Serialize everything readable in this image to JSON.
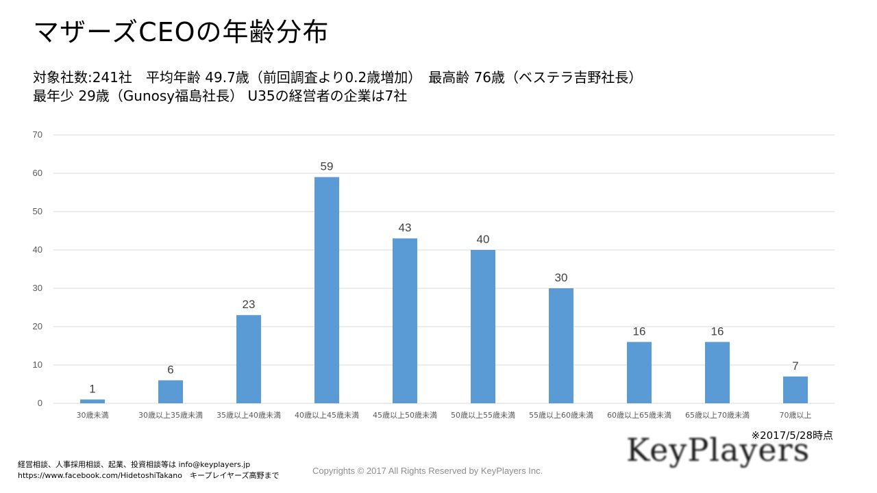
{
  "title": "マザーズCEOの年齢分布",
  "summary": {
    "line1": "対象社数:241社　平均年齢 49.7歳（前回調査より0.2歳増加）　最高齢 76歳（ベステラ吉野社長）",
    "line2": "最年少 29歳（Gunosy福島社長）  U35の経営者の企業は7社"
  },
  "chart_data": {
    "type": "bar",
    "categories": [
      "30歳未満",
      "30歳以上35歳未満",
      "35歳以上40歳未満",
      "40歳以上45歳未満",
      "45歳以上50歳未満",
      "50歳以上55歳未満",
      "55歳以上60歳未満",
      "60歳以上65歳未満",
      "65歳以上70歳未満",
      "70歳以上"
    ],
    "values": [
      1,
      6,
      23,
      59,
      43,
      40,
      30,
      16,
      16,
      7
    ],
    "ylim": [
      0,
      70
    ],
    "yticks": [
      0,
      10,
      20,
      30,
      40,
      50,
      60,
      70
    ],
    "grid": true,
    "data_labels": true,
    "bar_color": "#5b9bd5",
    "gridline_color": "#d9d9d9"
  },
  "note": "※2017/5/28時点",
  "footer": {
    "contact_line1": "経営相談、人事採用相談、起業、投資相談等は info@keyplayers.jp",
    "contact_line2": "https://www.facebook.com/HidetoshiTakano　キープレイヤーズ高野まで",
    "copyright": "Copyrights © 2017 All Rights Reserved by KeyPlayers Inc.",
    "logo_text": "KeyPlayers"
  }
}
